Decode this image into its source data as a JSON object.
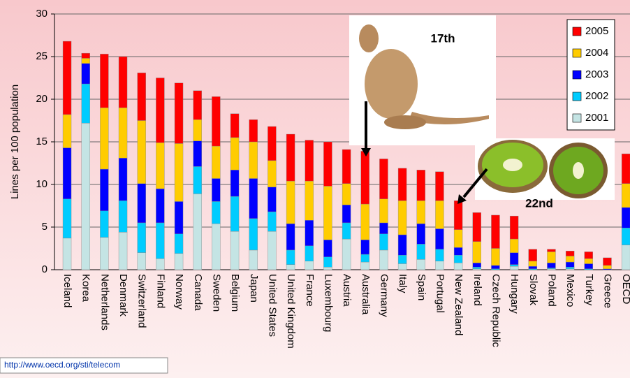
{
  "chart_data": {
    "type": "stacked_bar",
    "y_label": "Lines per 100 population",
    "categories": [
      "Iceland",
      "Korea",
      "Netherlands",
      "Denmark",
      "Switzerland",
      "Finland",
      "Norway",
      "Canada",
      "Sweden",
      "Belgium",
      "Japan",
      "United States",
      "United Kingdom",
      "France",
      "Luxembourg",
      "Austria",
      "Australia",
      "Germany",
      "Italy",
      "Spain",
      "Portugal",
      "New Zealand",
      "Ireland",
      "Czech Republic",
      "Hungary",
      "Slovak",
      "Poland",
      "Mexico",
      "Turkey",
      "Greece",
      "OECD"
    ],
    "series": [
      {
        "name": "2001",
        "color": "#c4e4e4",
        "values": [
          3.7,
          17.2,
          3.8,
          4.4,
          2.0,
          1.3,
          1.9,
          8.9,
          5.4,
          4.5,
          2.3,
          4.5,
          0.6,
          1.0,
          0.3,
          3.6,
          0.9,
          2.3,
          0.7,
          1.2,
          1.0,
          0.8,
          0.1,
          0.0,
          0.4,
          0.0,
          0.1,
          0.1,
          0.0,
          0.0,
          2.9
        ]
      },
      {
        "name": "2002",
        "color": "#00ccff",
        "values": [
          4.6,
          4.6,
          3.1,
          3.7,
          3.5,
          4.2,
          2.3,
          3.2,
          2.6,
          4.1,
          3.7,
          2.3,
          1.7,
          1.8,
          1.2,
          1.9,
          0.9,
          1.9,
          1.0,
          1.8,
          1.4,
          0.9,
          0.2,
          0.1,
          0.2,
          0.1,
          0.1,
          0.2,
          0.1,
          0.0,
          2.0
        ]
      },
      {
        "name": "2003",
        "color": "#0000ff",
        "values": [
          6.0,
          2.4,
          4.9,
          5.0,
          4.6,
          4.0,
          3.8,
          3.0,
          2.7,
          3.1,
          4.7,
          2.9,
          3.1,
          3.0,
          2.0,
          2.1,
          1.7,
          1.3,
          2.4,
          2.4,
          2.4,
          0.9,
          0.5,
          0.4,
          1.4,
          0.3,
          0.6,
          0.6,
          0.6,
          0.1,
          2.4
        ]
      },
      {
        "name": "2004",
        "color": "#ffcc00",
        "values": [
          3.9,
          0.6,
          7.2,
          5.9,
          7.4,
          5.4,
          6.8,
          2.5,
          3.8,
          3.8,
          4.3,
          3.1,
          5.0,
          4.6,
          6.3,
          2.5,
          4.2,
          2.8,
          4.0,
          2.7,
          3.3,
          2.1,
          2.5,
          2.0,
          1.6,
          0.6,
          1.3,
          0.7,
          0.6,
          0.4,
          2.8
        ]
      },
      {
        "name": "2005",
        "color": "#ff0000",
        "values": [
          8.6,
          0.6,
          6.3,
          6.0,
          5.6,
          7.6,
          7.1,
          3.4,
          5.8,
          2.8,
          2.6,
          4.0,
          5.5,
          4.8,
          5.2,
          4.0,
          6.2,
          4.7,
          3.8,
          3.6,
          3.4,
          3.4,
          3.4,
          3.9,
          2.7,
          1.4,
          0.3,
          0.6,
          0.8,
          0.9,
          3.5
        ]
      }
    ],
    "ylim": [
      0,
      30
    ],
    "yticks": [
      0,
      5,
      10,
      15,
      20,
      25,
      30
    ],
    "grid": true,
    "legend": "top-right",
    "annotations": [
      "17th",
      "22nd"
    ],
    "source": "http://www.oecd.org/sti/telecom"
  }
}
